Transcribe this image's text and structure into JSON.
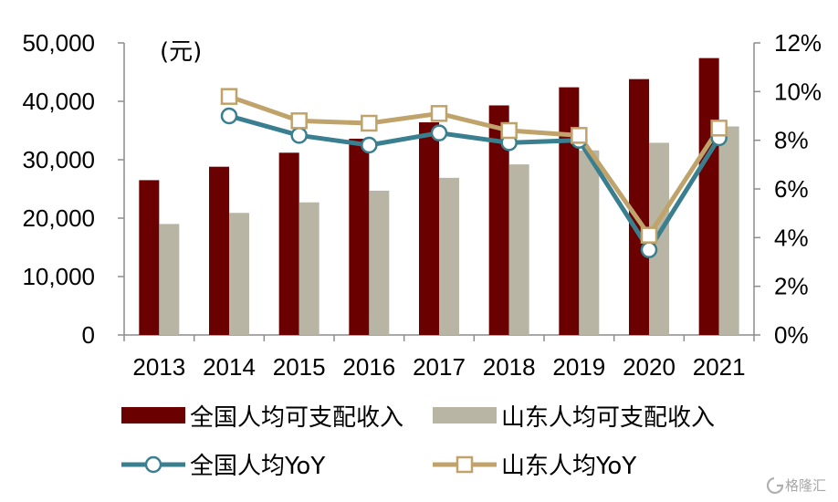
{
  "chart_data": {
    "type": "bar",
    "categories": [
      "2013",
      "2014",
      "2015",
      "2016",
      "2017",
      "2018",
      "2019",
      "2020",
      "2021"
    ],
    "unit_label": "(元)",
    "y_left": {
      "ylim": [
        0,
        50000
      ],
      "ticks": [
        "0",
        "10,000",
        "20,000",
        "30,000",
        "40,000",
        "50,000"
      ]
    },
    "y_right": {
      "ylim": [
        0,
        12
      ],
      "ticks": [
        "0%",
        "2%",
        "4%",
        "6%",
        "8%",
        "10%",
        "12%"
      ]
    },
    "series": [
      {
        "name": "全国人均可支配收入",
        "type": "bar",
        "axis": "left",
        "color": "#6b0000",
        "values": [
          26500,
          28800,
          31200,
          33600,
          36400,
          39300,
          42400,
          43800,
          47400
        ]
      },
      {
        "name": "山东人均可支配收入",
        "type": "bar",
        "axis": "left",
        "color": "#b8b5a5",
        "values": [
          19000,
          20900,
          22700,
          24700,
          26900,
          29200,
          31600,
          32900,
          35700
        ]
      },
      {
        "name": "全国人均YoY",
        "type": "line",
        "axis": "right",
        "color": "#3a7f8f",
        "marker": "circle",
        "values": [
          null,
          9.0,
          8.2,
          7.8,
          8.3,
          7.9,
          8.0,
          3.5,
          8.1
        ]
      },
      {
        "name": "山东人均YoY",
        "type": "line",
        "axis": "right",
        "color": "#bfa36a",
        "marker": "square",
        "values": [
          null,
          9.8,
          8.8,
          8.7,
          9.1,
          8.4,
          8.2,
          4.1,
          8.5
        ]
      }
    ],
    "grid": false,
    "legend_position": "bottom"
  },
  "watermark": {
    "text": "格隆汇"
  }
}
